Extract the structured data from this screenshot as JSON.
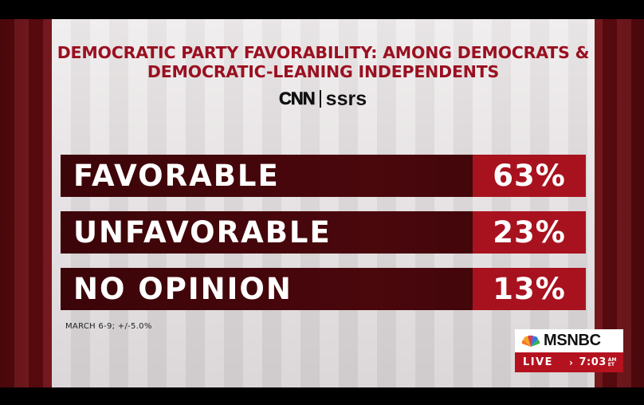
{
  "title_line1": "DEMOCRATIC PARTY FAVORABILITY: AMONG DEMOCRATS &",
  "title_line2": "DEMOCRATIC-LEANING INDEPENDENTS",
  "logo": {
    "cnn": "CNN",
    "ssrs": "ssrs"
  },
  "rows": [
    {
      "label": "FAVORABLE",
      "value": "63%"
    },
    {
      "label": "UNFAVORABLE",
      "value": "23%"
    },
    {
      "label": "NO OPINION",
      "value": "13%"
    }
  ],
  "footnote": "MARCH 6-9; +/-5.0%",
  "network": {
    "name": "MSNBC",
    "live": "LIVE",
    "time": "7:03",
    "ampm_top": "AM",
    "ampm_bottom": "ET"
  },
  "colors": {
    "accent": "#a8121f",
    "title": "#9a1020",
    "bar_dark": "#4a070c"
  }
}
